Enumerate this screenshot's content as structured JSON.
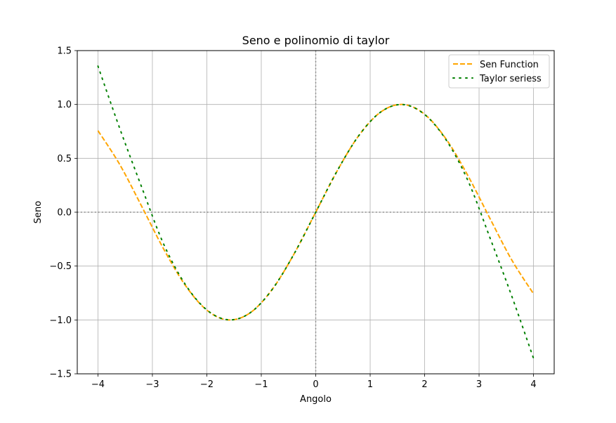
{
  "chart_data": {
    "type": "line",
    "title": "Seno e polinomio di taylor",
    "xlabel": "Angolo",
    "ylabel": "Seno",
    "xlim": [
      -4.38,
      4.38
    ],
    "ylim": [
      -1.5,
      1.5
    ],
    "xticks": [
      -4,
      -3,
      -2,
      -1,
      0,
      1,
      2,
      3,
      4
    ],
    "xtick_labels": [
      "−4",
      "−3",
      "−2",
      "−1",
      "0",
      "1",
      "2",
      "3",
      "4"
    ],
    "yticks": [
      -1.5,
      -1.0,
      -0.5,
      0.0,
      0.5,
      1.0,
      1.5
    ],
    "ytick_labels": [
      "−1.5",
      "−1.0",
      "−0.5",
      "0.0",
      "0.5",
      "1.0",
      "1.5"
    ],
    "grid": true,
    "reference_lines": {
      "x": 0,
      "y": 0,
      "style": "dotted",
      "color": "#808080"
    },
    "legend": {
      "placement": "top-right"
    },
    "series": [
      {
        "name": "Sen Function",
        "style": "dashed",
        "color": "#ffa500",
        "x": [
          -4.0,
          -3.6,
          -3.2,
          -2.8,
          -2.4,
          -2.0,
          -1.6,
          -1.2,
          -0.8,
          -0.4,
          0.0,
          0.4,
          0.8,
          1.2,
          1.6,
          2.0,
          2.4,
          2.8,
          3.2,
          3.6,
          4.0
        ],
        "values": [
          0.757,
          0.443,
          0.058,
          -0.335,
          -0.675,
          -0.909,
          -1.0,
          -0.932,
          -0.717,
          -0.389,
          0.0,
          0.389,
          0.717,
          0.932,
          1.0,
          0.909,
          0.675,
          0.335,
          -0.058,
          -0.443,
          -0.757
        ]
      },
      {
        "name": "Taylor seriess",
        "style": "dotted",
        "color": "#008000",
        "x": [
          -4.0,
          -3.6,
          -3.2,
          -2.8,
          -2.4,
          -2.0,
          -1.6,
          -1.2,
          -0.8,
          -0.4,
          0.0,
          0.4,
          0.8,
          1.2,
          1.6,
          2.0,
          2.4,
          2.8,
          3.2,
          3.6,
          4.0
        ],
        "values": [
          1.356,
          0.778,
          0.237,
          -0.288,
          -0.667,
          -0.907,
          -0.999,
          -0.932,
          -0.717,
          -0.389,
          0.0,
          0.389,
          0.717,
          0.932,
          0.999,
          0.907,
          0.667,
          0.288,
          -0.237,
          -0.778,
          -1.356
        ]
      }
    ]
  }
}
